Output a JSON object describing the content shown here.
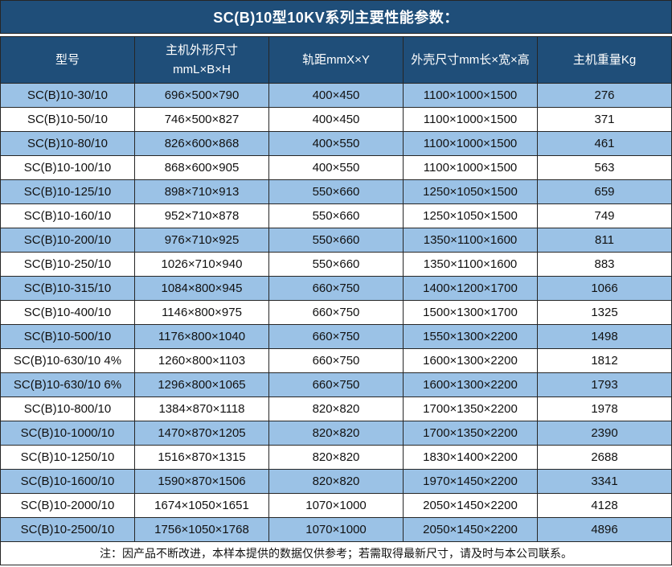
{
  "title": "SC(B)10型10KV系列主要性能参数：",
  "colors": {
    "header_bg": "#1f4e79",
    "alt_row_bg": "#9bc2e6",
    "row_bg": "#ffffff",
    "border": "#262626",
    "header_text": "#ffffff",
    "cell_text": "#111111"
  },
  "table": {
    "header": {
      "model": "型号",
      "dims_line1": "主机外形尺寸",
      "dims_line2": "mmL×B×H",
      "gauge": "轨距mmX×Y",
      "shell": "外壳尺寸mm长×宽×高",
      "weight": "主机重量Kg"
    },
    "rows": [
      {
        "model": "SC(B)10-30/10",
        "dims": "696×500×790",
        "gauge": "400×450",
        "shell": "1100×1000×1500",
        "weight": "276"
      },
      {
        "model": "SC(B)10-50/10",
        "dims": "746×500×827",
        "gauge": "400×450",
        "shell": "1100×1000×1500",
        "weight": "371"
      },
      {
        "model": "SC(B)10-80/10",
        "dims": "826×600×868",
        "gauge": "400×550",
        "shell": "1100×1000×1500",
        "weight": "461"
      },
      {
        "model": "SC(B)10-100/10",
        "dims": "868×600×905",
        "gauge": "400×550",
        "shell": "1100×1000×1500",
        "weight": "563"
      },
      {
        "model": "SC(B)10-125/10",
        "dims": "898×710×913",
        "gauge": "550×660",
        "shell": "1250×1050×1500",
        "weight": "659"
      },
      {
        "model": "SC(B)10-160/10",
        "dims": "952×710×878",
        "gauge": "550×660",
        "shell": "1250×1050×1500",
        "weight": "749"
      },
      {
        "model": "SC(B)10-200/10",
        "dims": "976×710×925",
        "gauge": "550×660",
        "shell": "1350×1100×1600",
        "weight": "811"
      },
      {
        "model": "SC(B)10-250/10",
        "dims": "1026×710×940",
        "gauge": "550×660",
        "shell": "1350×1100×1600",
        "weight": "883"
      },
      {
        "model": "SC(B)10-315/10",
        "dims": "1084×800×945",
        "gauge": "660×750",
        "shell": "1400×1200×1700",
        "weight": "1066"
      },
      {
        "model": "SC(B)10-400/10",
        "dims": "1146×800×975",
        "gauge": "660×750",
        "shell": "1500×1300×1700",
        "weight": "1325"
      },
      {
        "model": "SC(B)10-500/10",
        "dims": "1176×800×1040",
        "gauge": "660×750",
        "shell": "1550×1300×2200",
        "weight": "1498"
      },
      {
        "model": "SC(B)10-630/10 4%",
        "dims": "1260×800×1103",
        "gauge": "660×750",
        "shell": "1600×1300×2200",
        "weight": "1812"
      },
      {
        "model": "SC(B)10-630/10 6%",
        "dims": "1296×800×1065",
        "gauge": "660×750",
        "shell": "1600×1300×2200",
        "weight": "1793"
      },
      {
        "model": "SC(B)10-800/10",
        "dims": "1384×870×1118",
        "gauge": "820×820",
        "shell": "1700×1350×2200",
        "weight": "1978"
      },
      {
        "model": "SC(B)10-1000/10",
        "dims": "1470×870×1205",
        "gauge": "820×820",
        "shell": "1700×1350×2200",
        "weight": "2390"
      },
      {
        "model": "SC(B)10-1250/10",
        "dims": "1516×870×1315",
        "gauge": "820×820",
        "shell": "1830×1400×2200",
        "weight": "2688"
      },
      {
        "model": "SC(B)10-1600/10",
        "dims": "1590×870×1506",
        "gauge": "820×820",
        "shell": "1970×1450×2200",
        "weight": "3341"
      },
      {
        "model": "SC(B)10-2000/10",
        "dims": "1674×1050×1651",
        "gauge": "1070×1000",
        "shell": "2050×1450×2200",
        "weight": "4128"
      },
      {
        "model": "SC(B)10-2500/10",
        "dims": "1756×1050×1768",
        "gauge": "1070×1000",
        "shell": "2050×1450×2200",
        "weight": "4896"
      }
    ]
  },
  "note": "注：因产品不断改进，本样本提供的数据仅供参考；若需取得最新尺寸，请及时与本公司联系。"
}
